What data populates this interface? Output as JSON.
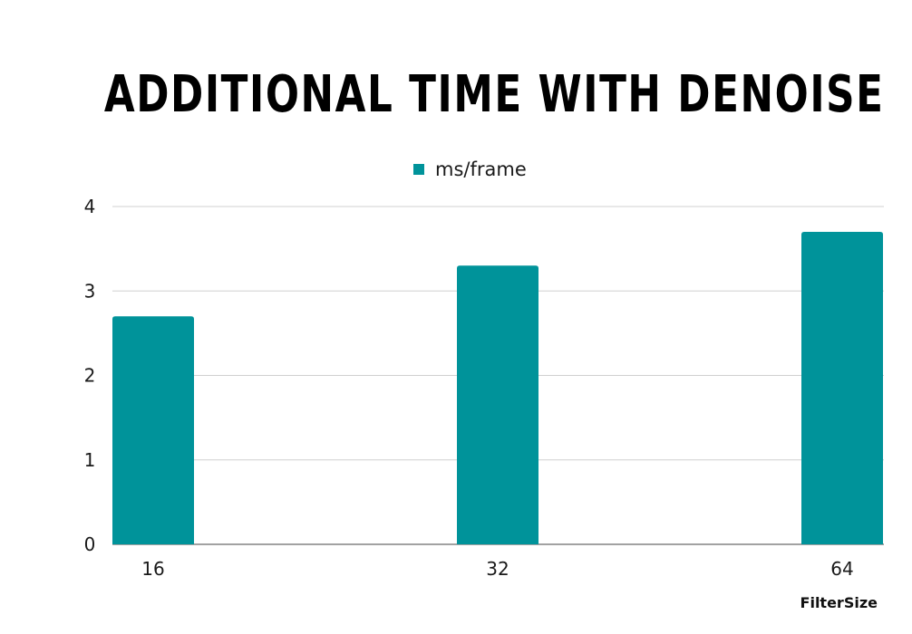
{
  "chart_data": {
    "type": "bar",
    "title": "ADDITIONAL TIME WITH DENOISE",
    "xlabel": "FilterSize",
    "ylabel": "",
    "categories": [
      "16",
      "32",
      "64"
    ],
    "series": [
      {
        "name": "ms/frame",
        "values": [
          2.7,
          3.3,
          3.7
        ]
      }
    ],
    "ylim": [
      0,
      4
    ],
    "yticks": [
      0,
      1,
      2,
      3,
      4
    ],
    "grid": true,
    "legend": "top-center",
    "colors": {
      "bar": "#00939A",
      "grid": "#d0d0d0",
      "axis": "#444444"
    }
  }
}
